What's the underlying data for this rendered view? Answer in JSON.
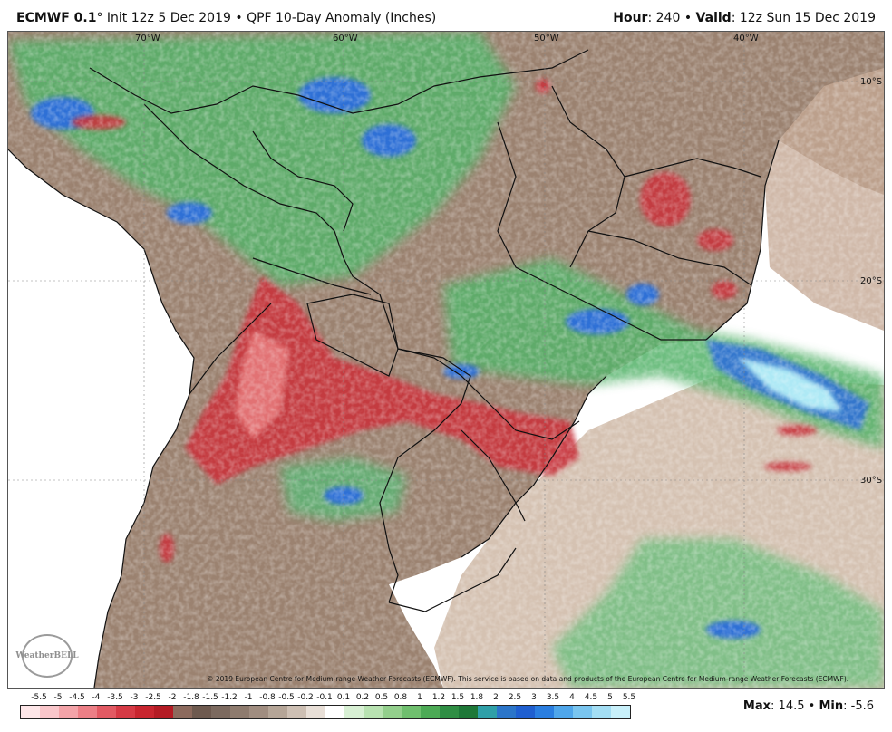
{
  "header": {
    "model": "ECMWF 0.1",
    "degree": "°",
    "init": "Init 12z 5 Dec 2019",
    "bullet": "•",
    "product": "QPF 10-Day Anomaly (Inches)",
    "hour_label": "Hour",
    "hour_value": "240",
    "valid_label": "Valid",
    "valid_value": "12z Sun 15 Dec 2019"
  },
  "map": {
    "longitude_labels": [
      "70°W",
      "60°W",
      "50°W",
      "40°W"
    ],
    "latitude_labels": [
      "10°S",
      "20°S",
      "30°S"
    ],
    "copyright": "© 2019 European Centre for Medium-range Weather Forecasts (ECMWF). This service is based on data and products of the European Centre for Medium-range Weather Forecasts (ECMWF).",
    "logo_text": "WeatherBELL",
    "colors": {
      "ocean": "#ffffff",
      "land_dry": "#9b8270",
      "strong_dry": "#c8343c",
      "wet": "#55b36b",
      "very_wet": "#2f6fd6",
      "extreme_wet": "#aee9f5",
      "borders": "#111111"
    }
  },
  "legend": {
    "labels": [
      "-5.5",
      "-5",
      "-4.5",
      "-4",
      "-3.5",
      "-3",
      "-2.5",
      "-2",
      "-1.8",
      "-1.5",
      "-1.2",
      "-1",
      "-0.8",
      "-0.5",
      "-0.2",
      "-0.1",
      "0.1",
      "0.2",
      "0.5",
      "0.8",
      "1",
      "1.2",
      "1.5",
      "1.8",
      "2",
      "2.5",
      "3",
      "3.5",
      "4",
      "4.5",
      "5",
      "5.5"
    ],
    "colors": [
      "#fde6e8",
      "#f9c6ca",
      "#f3a3a8",
      "#ec7f86",
      "#e25a63",
      "#d63a45",
      "#c8252f",
      "#b41b24",
      "#8c6a5d",
      "#6e5a4f",
      "#7c6a5f",
      "#8e7b6e",
      "#a08d80",
      "#b5a597",
      "#cdbfb3",
      "#e8dfd7",
      "#ffffff",
      "#d8f0d4",
      "#b8e2b1",
      "#93cf8c",
      "#6fbf6e",
      "#4caa55",
      "#2f8e44",
      "#1e7838",
      "#2fa0a8",
      "#2b75c9",
      "#1f5fd0",
      "#2a7ee0",
      "#4fa6ea",
      "#79c5ef",
      "#a3def4",
      "#c8f0fa"
    ],
    "max_label": "Max",
    "max_value": "14.5",
    "min_label": "Min",
    "min_value": "-5.6"
  }
}
